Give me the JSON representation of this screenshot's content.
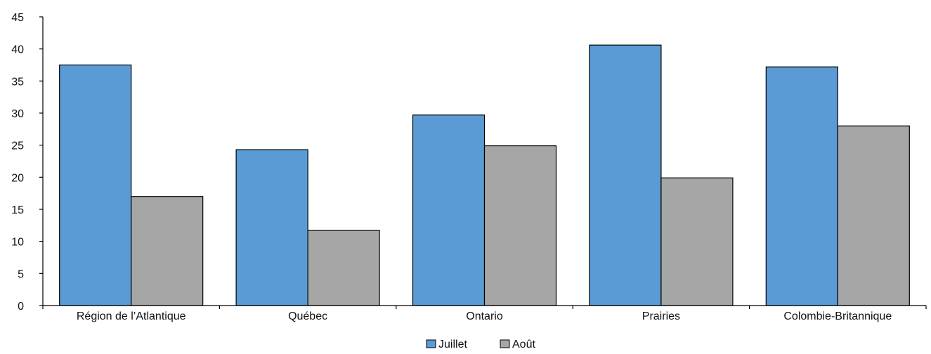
{
  "chart_data": {
    "type": "bar",
    "title": "",
    "xlabel": "",
    "ylabel": "",
    "ylim": [
      0,
      45
    ],
    "yticks": [
      0,
      5,
      10,
      15,
      20,
      25,
      30,
      35,
      40,
      45
    ],
    "grid": false,
    "legend_position": "bottom-center",
    "categories": [
      "Région de l’Atlantique",
      "Québec",
      "Ontario",
      "Prairies",
      "Colombie-Britannique"
    ],
    "series": [
      {
        "name": "Juillet",
        "color": "#5b9bd5",
        "values": [
          37.5,
          24.3,
          29.7,
          40.6,
          37.2
        ]
      },
      {
        "name": "Août",
        "color": "#a6a6a6",
        "values": [
          17.0,
          11.7,
          24.9,
          19.9,
          28.0
        ]
      }
    ]
  }
}
